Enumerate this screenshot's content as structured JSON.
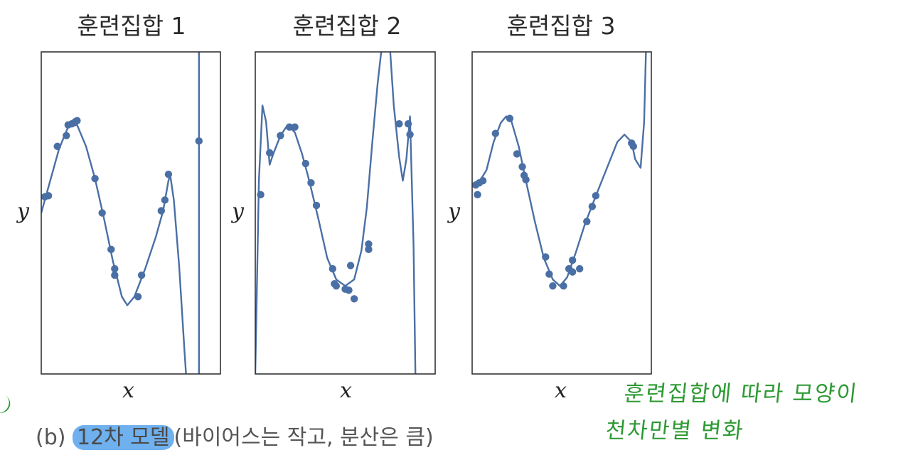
{
  "figure": {
    "caption_prefix": "(b) ",
    "caption_highlight": "12차 모델",
    "caption_rest": "(바이어스는 작고, 분산은 큼)"
  },
  "annotations": {
    "line1": "훈련집합에 따라 모양이",
    "line2": "천차만별 변화"
  },
  "colors": {
    "series": "#4a6fa5",
    "axes": "#333333",
    "annotation": "#2e9a34",
    "highlight": "#6fb0ee"
  },
  "chart_data": [
    {
      "type": "line",
      "title": "훈련집합 1",
      "xlabel": "x",
      "ylabel": "y",
      "xlim": [
        0,
        1
      ],
      "ylim": [
        -1.5,
        1.5
      ],
      "grid": false,
      "points": [
        {
          "x": 0.02,
          "y": 0.15
        },
        {
          "x": 0.04,
          "y": 0.16
        },
        {
          "x": 0.09,
          "y": 0.62
        },
        {
          "x": 0.14,
          "y": 0.72
        },
        {
          "x": 0.15,
          "y": 0.82
        },
        {
          "x": 0.17,
          "y": 0.83
        },
        {
          "x": 0.19,
          "y": 0.85
        },
        {
          "x": 0.2,
          "y": 0.86
        },
        {
          "x": 0.3,
          "y": 0.32
        },
        {
          "x": 0.34,
          "y": 0.0
        },
        {
          "x": 0.39,
          "y": -0.34
        },
        {
          "x": 0.41,
          "y": -0.52
        },
        {
          "x": 0.41,
          "y": -0.58
        },
        {
          "x": 0.54,
          "y": -0.78
        },
        {
          "x": 0.56,
          "y": -0.58
        },
        {
          "x": 0.67,
          "y": 0.02
        },
        {
          "x": 0.69,
          "y": 0.12
        },
        {
          "x": 0.71,
          "y": 0.36
        },
        {
          "x": 0.88,
          "y": 0.67
        }
      ],
      "curve": [
        {
          "x": 0.0,
          "y": 0.0
        },
        {
          "x": 0.05,
          "y": 0.3
        },
        {
          "x": 0.1,
          "y": 0.6
        },
        {
          "x": 0.15,
          "y": 0.8
        },
        {
          "x": 0.2,
          "y": 0.82
        },
        {
          "x": 0.25,
          "y": 0.62
        },
        {
          "x": 0.3,
          "y": 0.32
        },
        {
          "x": 0.35,
          "y": -0.05
        },
        {
          "x": 0.4,
          "y": -0.45
        },
        {
          "x": 0.45,
          "y": -0.78
        },
        {
          "x": 0.48,
          "y": -0.86
        },
        {
          "x": 0.52,
          "y": -0.78
        },
        {
          "x": 0.58,
          "y": -0.52
        },
        {
          "x": 0.64,
          "y": -0.22
        },
        {
          "x": 0.68,
          "y": 0.02
        },
        {
          "x": 0.71,
          "y": 0.3
        },
        {
          "x": 0.72,
          "y": 0.35
        },
        {
          "x": 0.74,
          "y": 0.12
        },
        {
          "x": 0.77,
          "y": -0.5
        },
        {
          "x": 0.8,
          "y": -1.3
        },
        {
          "x": 0.81,
          "y": -1.55
        }
      ],
      "curve2": [
        {
          "x": 0.88,
          "y": -1.55
        },
        {
          "x": 0.88,
          "y": 1.55
        }
      ]
    },
    {
      "type": "line",
      "title": "훈련집합 2",
      "xlabel": "x",
      "ylabel": "y",
      "xlim": [
        0,
        1
      ],
      "ylim": [
        -1.5,
        1.5
      ],
      "grid": false,
      "points": [
        {
          "x": 0.03,
          "y": 0.17
        },
        {
          "x": 0.08,
          "y": 0.56
        },
        {
          "x": 0.14,
          "y": 0.72
        },
        {
          "x": 0.19,
          "y": 0.8
        },
        {
          "x": 0.22,
          "y": 0.8
        },
        {
          "x": 0.28,
          "y": 0.46
        },
        {
          "x": 0.31,
          "y": 0.28
        },
        {
          "x": 0.34,
          "y": 0.07
        },
        {
          "x": 0.43,
          "y": -0.52
        },
        {
          "x": 0.44,
          "y": -0.66
        },
        {
          "x": 0.45,
          "y": -0.68
        },
        {
          "x": 0.5,
          "y": -0.71
        },
        {
          "x": 0.52,
          "y": -0.72
        },
        {
          "x": 0.53,
          "y": -0.49
        },
        {
          "x": 0.55,
          "y": -0.8
        },
        {
          "x": 0.63,
          "y": -0.34
        },
        {
          "x": 0.63,
          "y": -0.29
        },
        {
          "x": 0.8,
          "y": 0.83
        },
        {
          "x": 0.85,
          "y": 0.83
        },
        {
          "x": 0.86,
          "y": 0.73
        }
      ],
      "curve": [
        {
          "x": 0.0,
          "y": -1.5
        },
        {
          "x": 0.02,
          "y": 0.3
        },
        {
          "x": 0.04,
          "y": 1.0
        },
        {
          "x": 0.06,
          "y": 0.85
        },
        {
          "x": 0.08,
          "y": 0.45
        },
        {
          "x": 0.1,
          "y": 0.55
        },
        {
          "x": 0.14,
          "y": 0.72
        },
        {
          "x": 0.18,
          "y": 0.82
        },
        {
          "x": 0.22,
          "y": 0.75
        },
        {
          "x": 0.26,
          "y": 0.55
        },
        {
          "x": 0.3,
          "y": 0.3
        },
        {
          "x": 0.35,
          "y": -0.05
        },
        {
          "x": 0.4,
          "y": -0.42
        },
        {
          "x": 0.45,
          "y": -0.62
        },
        {
          "x": 0.5,
          "y": -0.68
        },
        {
          "x": 0.55,
          "y": -0.62
        },
        {
          "x": 0.59,
          "y": -0.35
        },
        {
          "x": 0.62,
          "y": 0.05
        },
        {
          "x": 0.65,
          "y": 0.65
        },
        {
          "x": 0.68,
          "y": 1.2
        },
        {
          "x": 0.7,
          "y": 1.5
        }
      ],
      "curve2": [
        {
          "x": 0.75,
          "y": 1.5
        },
        {
          "x": 0.77,
          "y": 1.0
        },
        {
          "x": 0.8,
          "y": 0.52
        },
        {
          "x": 0.82,
          "y": 0.3
        },
        {
          "x": 0.84,
          "y": 0.5
        },
        {
          "x": 0.86,
          "y": 0.9
        },
        {
          "x": 0.88,
          "y": -0.3
        },
        {
          "x": 0.89,
          "y": -1.5
        }
      ]
    },
    {
      "type": "line",
      "title": "훈련집합 3",
      "xlabel": "x",
      "ylabel": "y",
      "xlim": [
        0,
        1
      ],
      "ylim": [
        -1.5,
        1.5
      ],
      "grid": false,
      "points": [
        {
          "x": 0.02,
          "y": 0.26
        },
        {
          "x": 0.03,
          "y": 0.17
        },
        {
          "x": 0.04,
          "y": 0.28
        },
        {
          "x": 0.06,
          "y": 0.3
        },
        {
          "x": 0.13,
          "y": 0.74
        },
        {
          "x": 0.21,
          "y": 0.88
        },
        {
          "x": 0.25,
          "y": 0.55
        },
        {
          "x": 0.28,
          "y": 0.43
        },
        {
          "x": 0.3,
          "y": 0.31
        },
        {
          "x": 0.29,
          "y": 0.35
        },
        {
          "x": 0.41,
          "y": -0.41
        },
        {
          "x": 0.43,
          "y": -0.57
        },
        {
          "x": 0.45,
          "y": -0.68
        },
        {
          "x": 0.51,
          "y": -0.68
        },
        {
          "x": 0.54,
          "y": -0.52
        },
        {
          "x": 0.56,
          "y": -0.44
        },
        {
          "x": 0.56,
          "y": -0.55
        },
        {
          "x": 0.6,
          "y": -0.52
        },
        {
          "x": 0.64,
          "y": -0.08
        },
        {
          "x": 0.67,
          "y": 0.06
        },
        {
          "x": 0.69,
          "y": 0.16
        },
        {
          "x": 0.89,
          "y": 0.65
        },
        {
          "x": 0.9,
          "y": 0.62
        }
      ],
      "curve": [
        {
          "x": 0.0,
          "y": 0.27
        },
        {
          "x": 0.04,
          "y": 0.29
        },
        {
          "x": 0.08,
          "y": 0.4
        },
        {
          "x": 0.12,
          "y": 0.66
        },
        {
          "x": 0.16,
          "y": 0.84
        },
        {
          "x": 0.19,
          "y": 0.9
        },
        {
          "x": 0.22,
          "y": 0.85
        },
        {
          "x": 0.26,
          "y": 0.62
        },
        {
          "x": 0.3,
          "y": 0.3
        },
        {
          "x": 0.35,
          "y": -0.08
        },
        {
          "x": 0.4,
          "y": -0.42
        },
        {
          "x": 0.45,
          "y": -0.62
        },
        {
          "x": 0.49,
          "y": -0.68
        },
        {
          "x": 0.53,
          "y": -0.6
        },
        {
          "x": 0.58,
          "y": -0.36
        },
        {
          "x": 0.63,
          "y": -0.1
        },
        {
          "x": 0.7,
          "y": 0.2
        },
        {
          "x": 0.76,
          "y": 0.45
        },
        {
          "x": 0.81,
          "y": 0.66
        },
        {
          "x": 0.85,
          "y": 0.73
        },
        {
          "x": 0.89,
          "y": 0.66
        },
        {
          "x": 0.91,
          "y": 0.5
        },
        {
          "x": 0.94,
          "y": 0.42
        },
        {
          "x": 0.96,
          "y": 0.85
        },
        {
          "x": 0.97,
          "y": 1.5
        }
      ],
      "curve2": []
    }
  ]
}
